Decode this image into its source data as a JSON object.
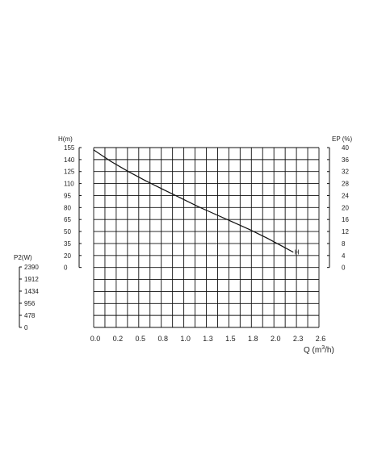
{
  "chart_data": {
    "type": "line",
    "title": "",
    "xlabel": "Q (m³/h)",
    "xlabel_parts": {
      "base": "Q (m",
      "sup": "3",
      "tail": "/h)"
    },
    "x_ticks": [
      "0.0",
      "0.2",
      "0.5",
      "0.8",
      "1.0",
      "1.3",
      "1.5",
      "1.8",
      "2.0",
      "2.3",
      "2.6"
    ],
    "xlim": [
      0,
      2.6
    ],
    "y_axes": [
      {
        "label": "H(m)",
        "ticks": [
          "0",
          "20",
          "35",
          "50",
          "65",
          "80",
          "95",
          "110",
          "125",
          "140",
          "155"
        ],
        "range": [
          0,
          155
        ]
      },
      {
        "label": "EP (%)",
        "ticks": [
          "0",
          "4",
          "8",
          "12",
          "16",
          "20",
          "24",
          "28",
          "32",
          "36",
          "40"
        ],
        "range": [
          0,
          40
        ]
      },
      {
        "label": "P2(W)",
        "ticks": [
          "0",
          "478",
          "956",
          "1434",
          "1912",
          "2390"
        ],
        "range": [
          0,
          2390
        ]
      }
    ],
    "grid": true,
    "series": [
      {
        "name": "H",
        "y_axis": "H(m)",
        "x": [
          0.0,
          0.2,
          0.4,
          0.6,
          0.8,
          1.0,
          1.2,
          1.4,
          1.6,
          1.8,
          2.0,
          2.2,
          2.3
        ],
        "y": [
          152,
          137,
          124,
          112,
          101,
          90,
          79,
          69,
          59,
          49,
          38,
          26,
          20
        ]
      }
    ]
  }
}
